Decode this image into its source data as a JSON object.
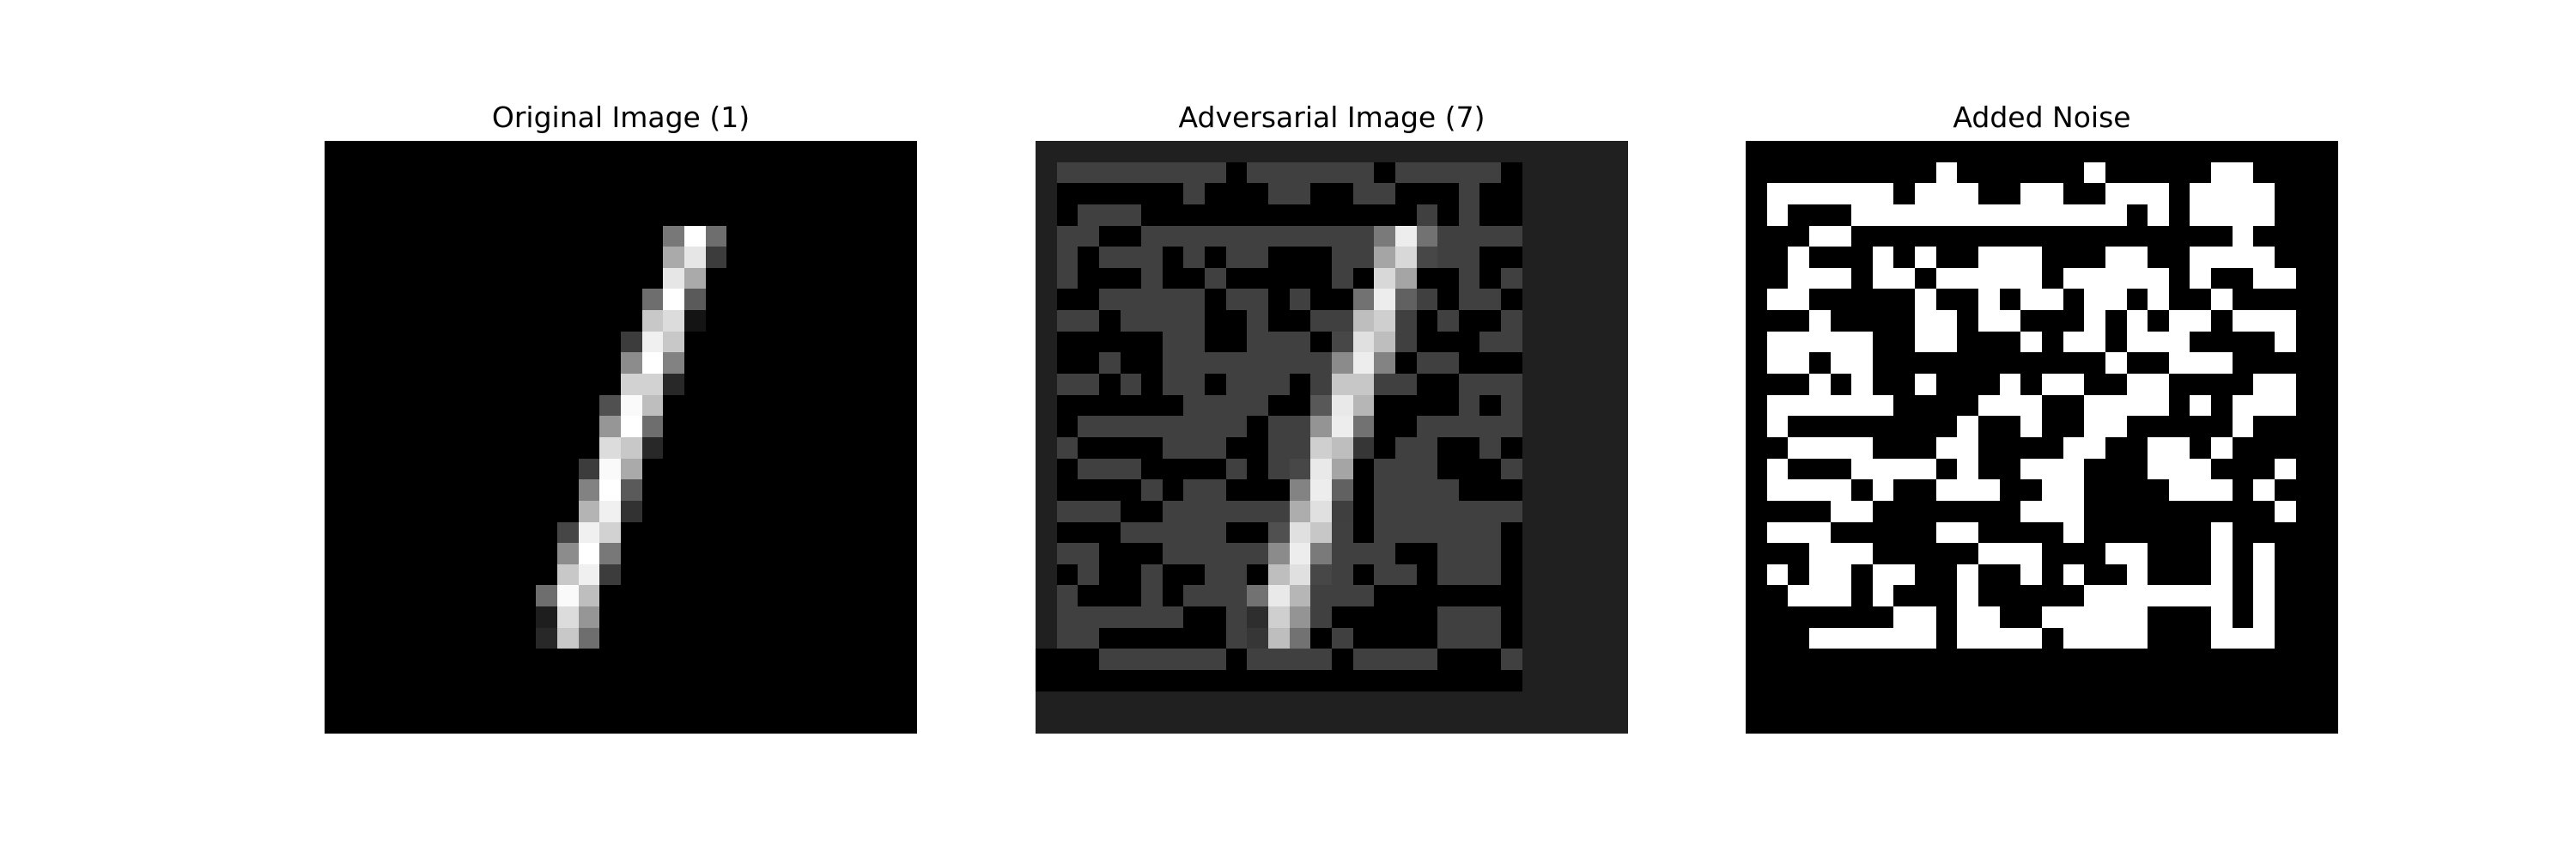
{
  "figure": {
    "panels": [
      {
        "id": "original",
        "title": "Original Image (1)",
        "base_color": "#000000"
      },
      {
        "id": "adversarial",
        "title": "Adversarial Image (7)",
        "base_color": "#202020"
      },
      {
        "id": "noise",
        "title": "Added Noise",
        "base_color": "#000000"
      }
    ],
    "grid_size": 28,
    "colors": {
      "background": "#ffffff",
      "pixel_black": "#000000",
      "pixel_white": "#ffffff",
      "adversarial_base": "#202020",
      "adversarial_noise_shade": "#404040"
    }
  }
}
